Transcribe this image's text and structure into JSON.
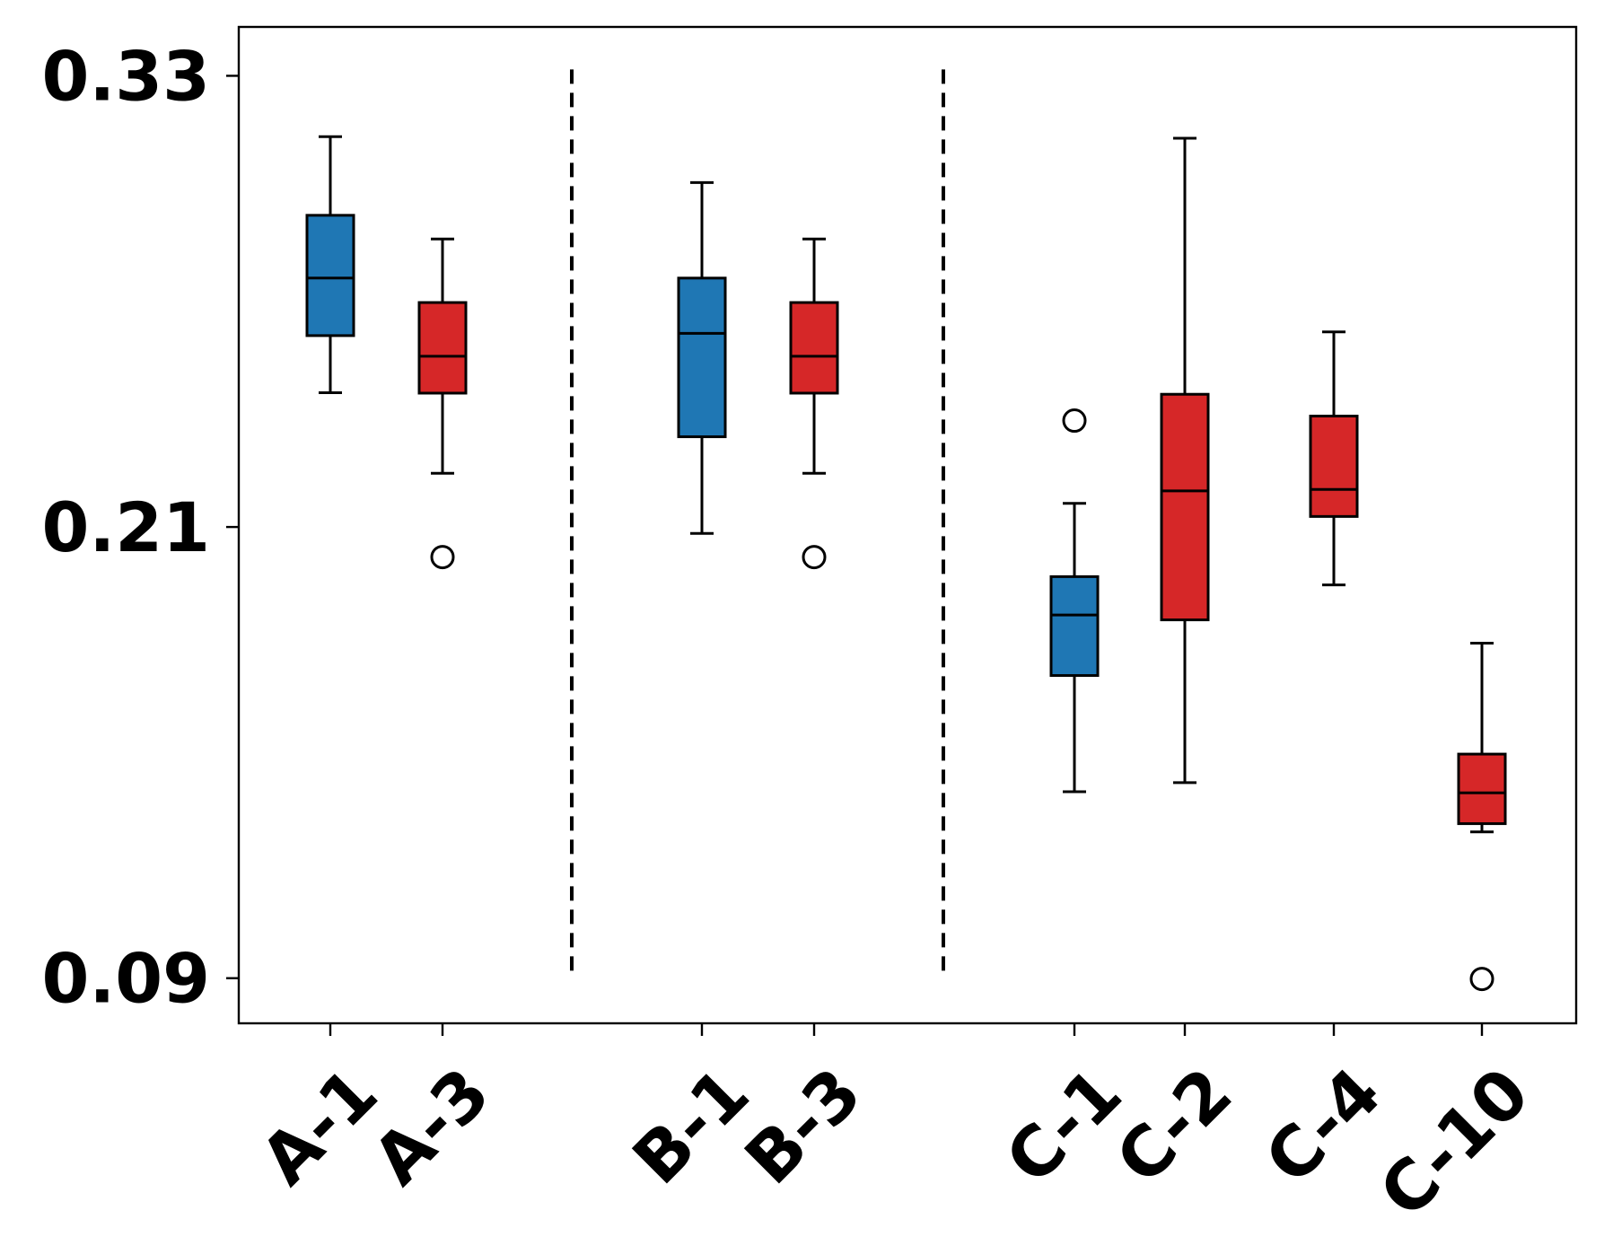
{
  "chart_data": {
    "type": "boxplot",
    "title": "",
    "xlabel": "",
    "ylabel": "",
    "ylim": [
      0.078,
      0.343
    ],
    "yticks": [
      0.09,
      0.21,
      0.33
    ],
    "ytick_labels": [
      "0.09",
      "0.21",
      "0.33"
    ],
    "group_separators_after": [
      "A-3",
      "B-3"
    ],
    "colors": {
      "blue": "#1f77b4",
      "red": "#d62728",
      "edge": "#000000"
    },
    "boxes": [
      {
        "label": "A-1",
        "color": "blue",
        "whisker_low": 0.2457,
        "q1": 0.2609,
        "median": 0.2762,
        "q3": 0.2929,
        "whisker_high": 0.3138,
        "outliers": []
      },
      {
        "label": "A-3",
        "color": "red",
        "whisker_low": 0.2243,
        "q1": 0.2456,
        "median": 0.2554,
        "q3": 0.2697,
        "whisker_high": 0.2866,
        "outliers": [
          0.202
        ]
      },
      {
        "label": "B-1",
        "color": "blue",
        "whisker_low": 0.2083,
        "q1": 0.234,
        "median": 0.2615,
        "q3": 0.2762,
        "whisker_high": 0.3016,
        "outliers": []
      },
      {
        "label": "B-3",
        "color": "red",
        "whisker_low": 0.2243,
        "q1": 0.2456,
        "median": 0.2554,
        "q3": 0.2697,
        "whisker_high": 0.2866,
        "outliers": [
          0.202
        ]
      },
      {
        "label": "C-1",
        "color": "blue",
        "whisker_low": 0.1396,
        "q1": 0.1705,
        "median": 0.1866,
        "q3": 0.1968,
        "whisker_high": 0.2163,
        "outliers": [
          0.2383
        ]
      },
      {
        "label": "C-2",
        "color": "red",
        "whisker_low": 0.142,
        "q1": 0.1853,
        "median": 0.2196,
        "q3": 0.2453,
        "whisker_high": 0.3134,
        "outliers": []
      },
      {
        "label": "C-4",
        "color": "red",
        "whisker_low": 0.1946,
        "q1": 0.2128,
        "median": 0.22,
        "q3": 0.2395,
        "whisker_high": 0.2619,
        "outliers": []
      },
      {
        "label": "C-10",
        "color": "red",
        "whisker_low": 0.1289,
        "q1": 0.1311,
        "median": 0.1393,
        "q3": 0.1496,
        "whisker_high": 0.1791,
        "outliers": [
          0.0898
        ]
      }
    ]
  }
}
